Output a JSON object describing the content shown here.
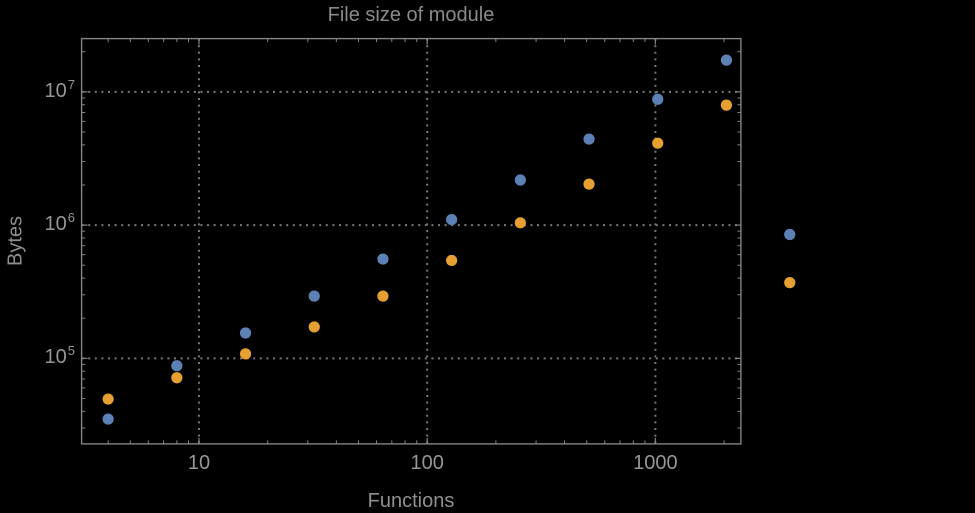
{
  "colors": {
    "background": "#000000",
    "frame": "#848484",
    "gridline": "#787878",
    "title_text": "#8a8a8a",
    "axis_label_text": "#8f8f8f",
    "tick_label_text": "#969696",
    "series_blue": "#5C81B5",
    "series_orange": "#E6A032"
  },
  "chart_data": {
    "type": "scatter",
    "title": "File size of module",
    "xlabel": "Functions",
    "ylabel": "Bytes",
    "x_scale": "log",
    "y_scale": "log",
    "xlim": [
      3.06,
      2370
    ],
    "ylim": [
      22800,
      25100000
    ],
    "grid": "dotted gridlines at powers of 10, gray on black",
    "legend": "none",
    "frame": true,
    "x_ticks": [
      {
        "value": 10,
        "label": "10"
      },
      {
        "value": 100,
        "label": "100"
      },
      {
        "value": 1000,
        "label": "1000"
      }
    ],
    "y_ticks": [
      {
        "value": 100000,
        "base": "10",
        "exponent": "5"
      },
      {
        "value": 1000000,
        "base": "10",
        "exponent": "6"
      },
      {
        "value": 10000000,
        "base": "10",
        "exponent": "7"
      }
    ],
    "series": [
      {
        "name": "series-blue",
        "color": "#5C81B5",
        "points": [
          {
            "x": 4,
            "y": 35000
          },
          {
            "x": 8,
            "y": 88000
          },
          {
            "x": 16,
            "y": 155000
          },
          {
            "x": 32,
            "y": 293000
          },
          {
            "x": 64,
            "y": 556000
          },
          {
            "x": 128,
            "y": 1100000
          },
          {
            "x": 256,
            "y": 2180000
          },
          {
            "x": 512,
            "y": 4420000
          },
          {
            "x": 1024,
            "y": 8800000
          },
          {
            "x": 2048,
            "y": 17300000
          },
          {
            "x": 3880,
            "y": 850000
          }
        ]
      },
      {
        "name": "series-orange",
        "color": "#E6A032",
        "points": [
          {
            "x": 4,
            "y": 49500
          },
          {
            "x": 8,
            "y": 71500
          },
          {
            "x": 16,
            "y": 108000
          },
          {
            "x": 32,
            "y": 172000
          },
          {
            "x": 64,
            "y": 293000
          },
          {
            "x": 128,
            "y": 543000
          },
          {
            "x": 256,
            "y": 1040000
          },
          {
            "x": 512,
            "y": 2030000
          },
          {
            "x": 1024,
            "y": 4120000
          },
          {
            "x": 2048,
            "y": 7950000
          },
          {
            "x": 3880,
            "y": 370000
          }
        ]
      }
    ]
  }
}
